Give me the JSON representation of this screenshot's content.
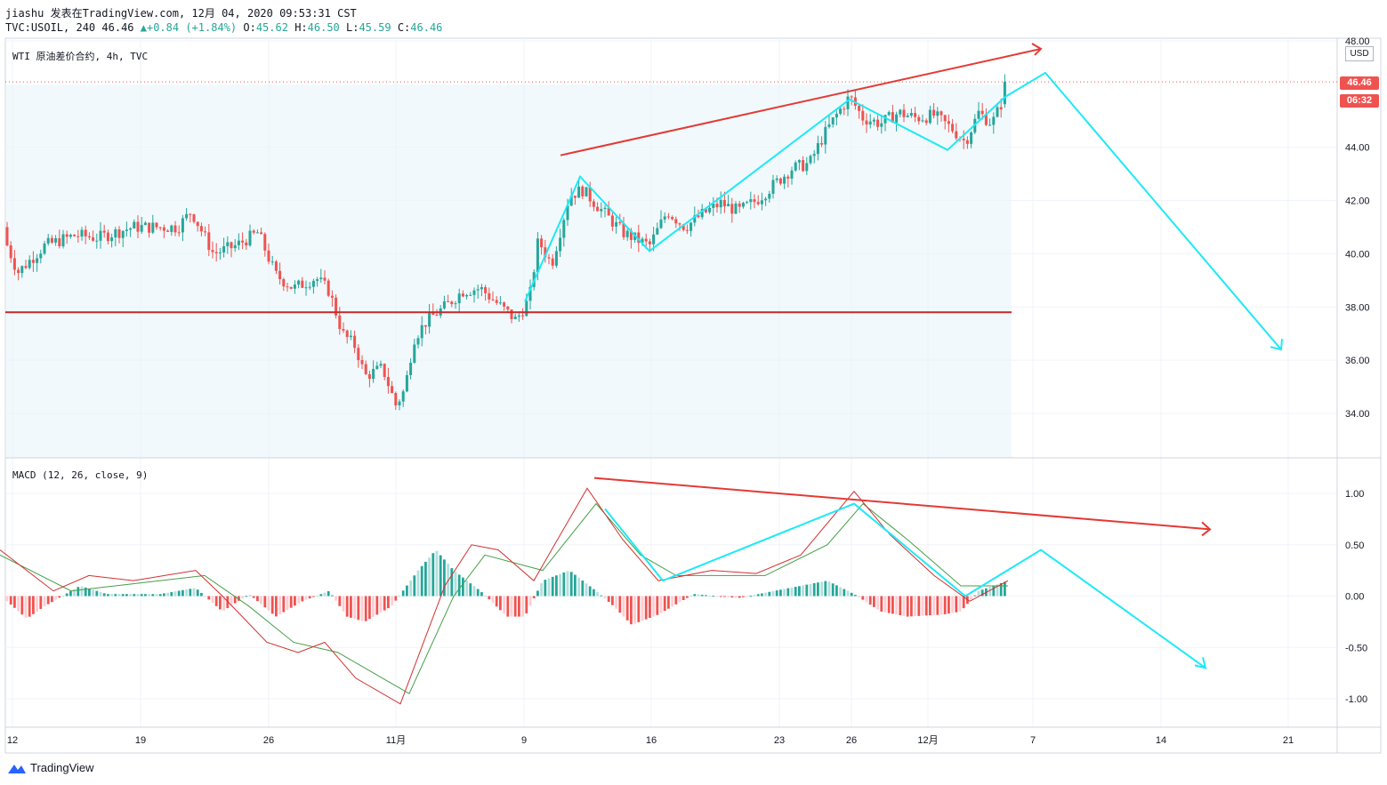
{
  "header": {
    "line1": "jiashu 发表在TradingView.com, 12月 04, 2020 09:53:31 CST",
    "symbol": "TVC:USOIL, 240",
    "last": "46.46",
    "change": "+0.84 (+1.84%)",
    "o_label": "O:",
    "o_value": "45.62",
    "h_label": "H:",
    "h_value": "46.50",
    "l_label": "L:",
    "l_value": "45.59",
    "c_label": "C:",
    "c_value": "46.46"
  },
  "price_pane": {
    "title": "WTI 原油差价合约, 4h, TVC",
    "unit": "USD",
    "last_price_tag": "46.46",
    "countdown_tag": "06:32"
  },
  "macd_pane": {
    "title": "MACD (12, 26, close, 9)"
  },
  "footer": {
    "brand": "TradingView"
  },
  "colors": {
    "up": "#26a69a",
    "down": "#ef5350",
    "support": "#c62828",
    "trend_red": "#e53935",
    "projection": "#1de9f6",
    "signal": "#43a047",
    "macd": "#d32f2f",
    "shade": "#e6f4fa"
  },
  "chart_data": [
    {
      "type": "candlestick",
      "title": "WTI 原油差价合约, 4h, TVC",
      "x_ticks": [
        "12",
        "19",
        "26",
        "11月",
        "9",
        "16",
        "23",
        "26",
        "12月",
        "7",
        "14",
        "21"
      ],
      "y_ticks": [
        "34.00",
        "36.00",
        "38.00",
        "40.00",
        "42.00",
        "44.00",
        "46.46",
        "48.00"
      ],
      "ylim": [
        32.5,
        48.0
      ],
      "last_price": 46.46,
      "ohlc": {
        "open": 45.62,
        "high": 46.5,
        "low": 45.59,
        "close": 46.46
      },
      "close_path": [
        [
          0,
          41.0
        ],
        [
          20,
          39.3
        ],
        [
          50,
          40.3
        ],
        [
          85,
          40.7
        ],
        [
          110,
          40.6
        ],
        [
          150,
          41.0
        ],
        [
          200,
          41.0
        ],
        [
          215,
          41.6
        ],
        [
          240,
          40.0
        ],
        [
          265,
          40.3
        ],
        [
          290,
          40.8
        ],
        [
          310,
          39.2
        ],
        [
          330,
          38.7
        ],
        [
          355,
          39.1
        ],
        [
          370,
          38.6
        ],
        [
          385,
          37.0
        ],
        [
          400,
          36.5
        ],
        [
          410,
          35.4
        ],
        [
          430,
          35.7
        ],
        [
          445,
          34.3
        ],
        [
          455,
          34.9
        ],
        [
          465,
          36.8
        ],
        [
          480,
          37.5
        ],
        [
          500,
          38.0
        ],
        [
          520,
          38.6
        ],
        [
          540,
          38.7
        ],
        [
          560,
          38.1
        ],
        [
          580,
          37.5
        ],
        [
          595,
          38.3
        ],
        [
          605,
          40.5
        ],
        [
          620,
          39.6
        ],
        [
          640,
          42.2
        ],
        [
          655,
          42.4
        ],
        [
          680,
          41.5
        ],
        [
          700,
          40.8
        ],
        [
          730,
          40.3
        ],
        [
          750,
          41.6
        ],
        [
          770,
          41.0
        ],
        [
          790,
          41.5
        ],
        [
          810,
          41.9
        ],
        [
          830,
          41.6
        ],
        [
          850,
          42.0
        ],
        [
          870,
          42.6
        ],
        [
          890,
          43.2
        ],
        [
          910,
          43.4
        ],
        [
          925,
          44.4
        ],
        [
          940,
          45.2
        ],
        [
          955,
          45.9
        ],
        [
          970,
          45.1
        ],
        [
          990,
          44.9
        ],
        [
          1010,
          45.3
        ],
        [
          1030,
          45.1
        ],
        [
          1050,
          45.2
        ],
        [
          1070,
          44.7
        ],
        [
          1085,
          44.2
        ],
        [
          1100,
          45.3
        ],
        [
          1115,
          44.9
        ],
        [
          1125,
          45.6
        ],
        [
          1133,
          46.46
        ]
      ],
      "support_level": 37.8,
      "trendline": {
        "from": [
          630,
          43.7
        ],
        "to": [
          1170,
          47.7
        ]
      },
      "projection": [
        [
          590,
          38.2
        ],
        [
          652,
          42.9
        ],
        [
          730,
          40.1
        ],
        [
          955,
          45.8
        ],
        [
          1065,
          43.9
        ],
        [
          1130,
          45.9
        ],
        [
          1175,
          46.8
        ],
        [
          1440,
          36.4
        ]
      ]
    },
    {
      "type": "line",
      "title": "MACD (12, 26, close, 9)",
      "y_ticks": [
        "1.00",
        "0.50",
        "0.00",
        "-0.50",
        "-1.00"
      ],
      "ylim": [
        -1.25,
        1.35
      ],
      "series": [
        {
          "name": "MACD",
          "values": [
            [
              0,
              0.45
            ],
            [
              60,
              0.05
            ],
            [
              100,
              0.2
            ],
            [
              150,
              0.15
            ],
            [
              220,
              0.25
            ],
            [
              250,
              0.0
            ],
            [
              300,
              -0.45
            ],
            [
              335,
              -0.55
            ],
            [
              365,
              -0.45
            ],
            [
              400,
              -0.8
            ],
            [
              450,
              -1.05
            ],
            [
              500,
              0.1
            ],
            [
              530,
              0.5
            ],
            [
              560,
              0.45
            ],
            [
              600,
              0.15
            ],
            [
              660,
              1.05
            ],
            [
              700,
              0.55
            ],
            [
              740,
              0.15
            ],
            [
              800,
              0.25
            ],
            [
              850,
              0.22
            ],
            [
              900,
              0.4
            ],
            [
              960,
              1.02
            ],
            [
              1000,
              0.6
            ],
            [
              1050,
              0.2
            ],
            [
              1090,
              -0.05
            ],
            [
              1133,
              0.15
            ]
          ]
        },
        {
          "name": "Signal",
          "values": [
            [
              0,
              0.4
            ],
            [
              80,
              0.05
            ],
            [
              150,
              0.12
            ],
            [
              230,
              0.2
            ],
            [
              280,
              -0.1
            ],
            [
              330,
              -0.45
            ],
            [
              380,
              -0.55
            ],
            [
              460,
              -0.95
            ],
            [
              510,
              0.0
            ],
            [
              545,
              0.4
            ],
            [
              610,
              0.25
            ],
            [
              670,
              0.9
            ],
            [
              720,
              0.4
            ],
            [
              760,
              0.2
            ],
            [
              860,
              0.2
            ],
            [
              930,
              0.5
            ],
            [
              970,
              0.9
            ],
            [
              1020,
              0.55
            ],
            [
              1080,
              0.1
            ],
            [
              1133,
              0.1
            ]
          ]
        }
      ],
      "histogram": [
        [
          8,
          -0.05
        ],
        [
          30,
          -0.22
        ],
        [
          50,
          -0.1
        ],
        [
          90,
          0.1
        ],
        [
          120,
          0.02
        ],
        [
          180,
          0.02
        ],
        [
          220,
          0.08
        ],
        [
          250,
          -0.15
        ],
        [
          280,
          0.02
        ],
        [
          310,
          -0.2
        ],
        [
          340,
          -0.05
        ],
        [
          370,
          0.05
        ],
        [
          390,
          -0.2
        ],
        [
          410,
          -0.25
        ],
        [
          440,
          -0.1
        ],
        [
          470,
          0.25
        ],
        [
          490,
          0.45
        ],
        [
          510,
          0.25
        ],
        [
          540,
          0.05
        ],
        [
          570,
          -0.2
        ],
        [
          590,
          -0.2
        ],
        [
          610,
          0.15
        ],
        [
          640,
          0.25
        ],
        [
          670,
          0.05
        ],
        [
          690,
          -0.1
        ],
        [
          710,
          -0.28
        ],
        [
          740,
          -0.18
        ],
        [
          780,
          0.02
        ],
        [
          830,
          -0.02
        ],
        [
          870,
          0.05
        ],
        [
          900,
          0.1
        ],
        [
          930,
          0.15
        ],
        [
          960,
          0.02
        ],
        [
          990,
          -0.15
        ],
        [
          1020,
          -0.2
        ],
        [
          1060,
          -0.18
        ],
        [
          1080,
          -0.15
        ],
        [
          1100,
          0.05
        ],
        [
          1133,
          0.15
        ]
      ],
      "trendline": {
        "from": [
          668,
          1.15
        ],
        "to": [
          1360,
          0.65
        ]
      },
      "projection": [
        [
          680,
          0.85
        ],
        [
          745,
          0.15
        ],
        [
          960,
          0.9
        ],
        [
          1085,
          0.0
        ],
        [
          1170,
          0.45
        ],
        [
          1355,
          -0.7
        ]
      ]
    }
  ]
}
